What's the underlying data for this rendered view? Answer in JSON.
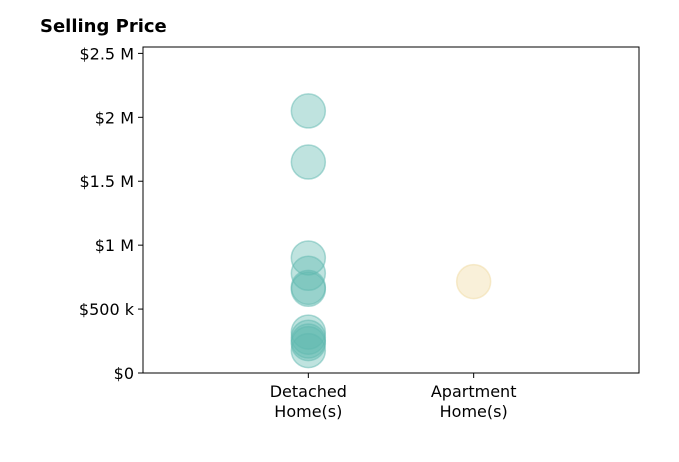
{
  "chart_data": {
    "type": "scatter",
    "title": "Selling Price",
    "xlabel": "",
    "ylabel": "",
    "categories": [
      {
        "lines": [
          "Detached",
          "Home(s)"
        ],
        "color": "#5fb8b0"
      },
      {
        "lines": [
          "Apartment",
          "Home(s)"
        ],
        "color": "#f0d9a0"
      }
    ],
    "xlim": [
      -1,
      2
    ],
    "ylim": [
      0,
      2550000
    ],
    "y_ticks": [
      {
        "value": 0,
        "label": "$0"
      },
      {
        "value": 500000,
        "label": "$500 k"
      },
      {
        "value": 1000000,
        "label": "$1 M"
      },
      {
        "value": 1500000,
        "label": "$1.5 M"
      },
      {
        "value": 2000000,
        "label": "$2 M"
      },
      {
        "value": 2500000,
        "label": "$2.5 M"
      }
    ],
    "points": [
      {
        "category": 0,
        "y": 2050000
      },
      {
        "category": 0,
        "y": 1650000
      },
      {
        "category": 0,
        "y": 900000
      },
      {
        "category": 0,
        "y": 780000
      },
      {
        "category": 0,
        "y": 670000
      },
      {
        "category": 0,
        "y": 655000
      },
      {
        "category": 0,
        "y": 320000
      },
      {
        "category": 0,
        "y": 280000
      },
      {
        "category": 0,
        "y": 250000
      },
      {
        "category": 0,
        "y": 230000
      },
      {
        "category": 0,
        "y": 175000
      },
      {
        "category": 1,
        "y": 715000
      }
    ],
    "grid": false,
    "legend": "none"
  }
}
